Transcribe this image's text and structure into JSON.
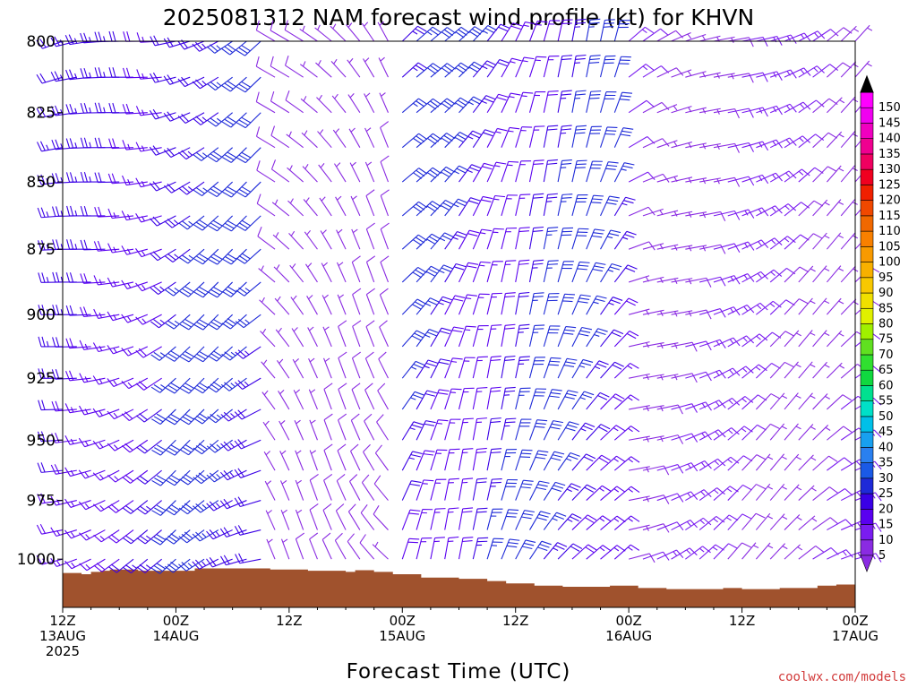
{
  "title": "2025081312 NAM forecast wind profile (kt) for KHVN",
  "xlabel": "Forecast Time (UTC)",
  "credit": "coolwx.com/models",
  "x_ticks": [
    {
      "hour": 0,
      "line1": "12Z",
      "line2": "13AUG",
      "line3": "2025"
    },
    {
      "hour": 12,
      "line1": "00Z",
      "line2": "14AUG",
      "line3": ""
    },
    {
      "hour": 24,
      "line1": "12Z",
      "line2": "",
      "line3": ""
    },
    {
      "hour": 36,
      "line1": "00Z",
      "line2": "15AUG",
      "line3": ""
    },
    {
      "hour": 48,
      "line1": "12Z",
      "line2": "",
      "line3": ""
    },
    {
      "hour": 60,
      "line1": "00Z",
      "line2": "16AUG",
      "line3": ""
    },
    {
      "hour": 72,
      "line1": "12Z",
      "line2": "",
      "line3": ""
    },
    {
      "hour": 84,
      "line1": "00Z",
      "line2": "17AUG",
      "line3": ""
    }
  ],
  "chart_data": {
    "type": "wind-barb time-height",
    "title": "2025081312 NAM forecast wind profile (kt) for KHVN",
    "xlabel": "Forecast Time (UTC)",
    "ylabel": "",
    "x_range_hours": [
      0,
      84
    ],
    "y_ticks": [
      800,
      825,
      850,
      875,
      900,
      925,
      950,
      975,
      1000
    ],
    "ylim": [
      800,
      1021
    ],
    "y_scale": "log-pressure",
    "colorbar": {
      "units": "kt",
      "levels": [
        5,
        10,
        15,
        20,
        25,
        30,
        35,
        40,
        45,
        50,
        55,
        60,
        65,
        70,
        75,
        80,
        85,
        90,
        95,
        100,
        105,
        110,
        115,
        120,
        125,
        130,
        135,
        140,
        145,
        150
      ],
      "colors": [
        "#8a2be2",
        "#7a1cf0",
        "#5a00f0",
        "#3a00e6",
        "#1e2ad8",
        "#1a5ae6",
        "#2a80f0",
        "#18a0f0",
        "#00c0e8",
        "#00e0c8",
        "#00e090",
        "#10d840",
        "#30e030",
        "#60e020",
        "#a0f000",
        "#e0f000",
        "#f0e000",
        "#f8c800",
        "#f8b000",
        "#f89a00",
        "#f88000",
        "#f06800",
        "#f04800",
        "#f02000",
        "#f00020",
        "#f00060",
        "#f00090",
        "#f000c0",
        "#f000f0",
        "#ff00ff"
      ]
    },
    "surface_pressure_hpa": [
      {
        "hour": 0,
        "p": 1006
      },
      {
        "hour": 1,
        "p": 1006
      },
      {
        "hour": 2,
        "p": 1006.5
      },
      {
        "hour": 3,
        "p": 1005.5
      },
      {
        "hour": 4,
        "p": 1005
      },
      {
        "hour": 5,
        "p": 1004.5
      },
      {
        "hour": 6,
        "p": 1004.5
      },
      {
        "hour": 8,
        "p": 1005
      },
      {
        "hour": 10,
        "p": 1005
      },
      {
        "hour": 12,
        "p": 1005
      },
      {
        "hour": 14,
        "p": 1004
      },
      {
        "hour": 18,
        "p": 1004
      },
      {
        "hour": 22,
        "p": 1004.5
      },
      {
        "hour": 26,
        "p": 1005
      },
      {
        "hour": 30,
        "p": 1005.5
      },
      {
        "hour": 31,
        "p": 1004.8
      },
      {
        "hour": 33,
        "p": 1005.5
      },
      {
        "hour": 35,
        "p": 1006.5
      },
      {
        "hour": 38,
        "p": 1008
      },
      {
        "hour": 42,
        "p": 1008.5
      },
      {
        "hour": 45,
        "p": 1009.5
      },
      {
        "hour": 47,
        "p": 1010.5
      },
      {
        "hour": 50,
        "p": 1011.5
      },
      {
        "hour": 53,
        "p": 1012
      },
      {
        "hour": 57,
        "p": 1012
      },
      {
        "hour": 58,
        "p": 1011.5
      },
      {
        "hour": 61,
        "p": 1012.5
      },
      {
        "hour": 64,
        "p": 1013
      },
      {
        "hour": 68,
        "p": 1013
      },
      {
        "hour": 70,
        "p": 1012.5
      },
      {
        "hour": 72,
        "p": 1013
      },
      {
        "hour": 75,
        "p": 1013
      },
      {
        "hour": 76,
        "p": 1012.5
      },
      {
        "hour": 78,
        "p": 1012.5
      },
      {
        "hour": 80,
        "p": 1011.5
      },
      {
        "hour": 82,
        "p": 1011
      },
      {
        "hour": 84,
        "p": 1011
      }
    ],
    "wind_regimes": [
      {
        "hours": [
          0,
          12
        ],
        "levels": "800-1000",
        "direction_from_deg": 250,
        "speed_kt": [
          15,
          25
        ]
      },
      {
        "hours": [
          12,
          22
        ],
        "levels": "800-1000",
        "direction_from_deg": 245,
        "speed_kt": [
          20,
          30
        ]
      },
      {
        "hours": [
          22,
          36
        ],
        "levels": "800-1000",
        "direction_from_deg": 320,
        "speed_kt": [
          5,
          10
        ]
      },
      {
        "hours": [
          36,
          60
        ],
        "levels": "800-975",
        "direction_from_deg": 30,
        "speed_kt": [
          15,
          30
        ]
      },
      {
        "hours": [
          60,
          84
        ],
        "levels": "800-1000",
        "direction_from_deg": 60,
        "speed_kt": [
          5,
          15
        ]
      }
    ]
  }
}
